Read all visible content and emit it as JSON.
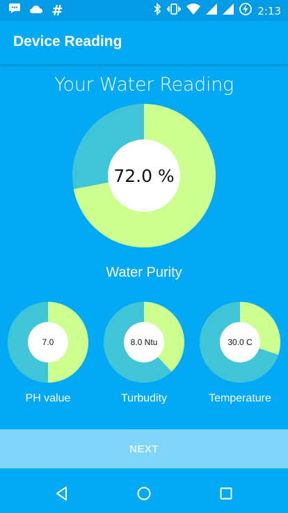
{
  "status_bar": {
    "time": "2:13",
    "left_icons": [
      "message-icon",
      "cloud-icon",
      "hash-icon"
    ],
    "hash_glyph": "#",
    "right_icons": [
      "bluetooth-icon",
      "vibrate-icon",
      "wifi-icon",
      "signal-icon",
      "signal-icon",
      "battery-charging-icon"
    ]
  },
  "app_bar": {
    "title": "Device Reading"
  },
  "main": {
    "heading": "Your Water Reading",
    "purity": {
      "value_text": "72.0 %",
      "fraction": 0.72,
      "label": "Water Purity"
    },
    "metrics": [
      {
        "value_text": "7.0",
        "fraction": 0.5,
        "label": "PH value"
      },
      {
        "value_text": "8.0 Ntu",
        "fraction": 0.38,
        "label": "Turbudity"
      },
      {
        "value_text": "30.0 C",
        "fraction": 0.3,
        "label": "Temperature"
      }
    ]
  },
  "colors": {
    "background": "#03a9f4",
    "gauge_fill": "#ccff90",
    "gauge_track": "#40c4d8",
    "gauge_center": "#ffffff"
  },
  "actions": {
    "next_label": "NEXT"
  },
  "nav": {
    "items": [
      "back-icon",
      "home-icon",
      "recents-icon"
    ]
  }
}
